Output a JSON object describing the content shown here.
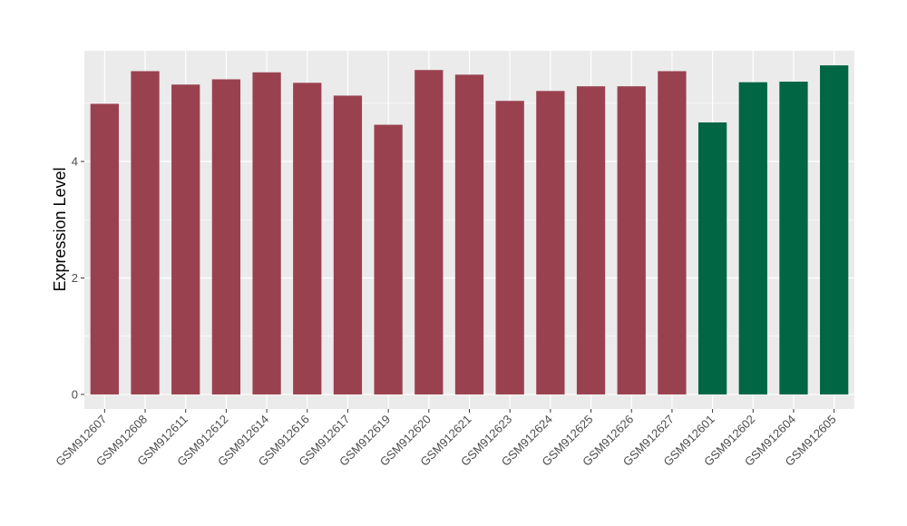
{
  "chart_data": {
    "type": "bar",
    "title": "",
    "xlabel": "",
    "ylabel": "Expression Level",
    "ylim": [
      -0.25,
      5.9
    ],
    "yticks": [
      0,
      2,
      4
    ],
    "grid": true,
    "legend": "none",
    "colors": {
      "group_a": "#9a4150",
      "group_b": "#006644",
      "panel_bg": "#ebebeb",
      "grid": "#ffffff"
    },
    "categories": [
      "GSM912607",
      "GSM912608",
      "GSM912611",
      "GSM912612",
      "GSM912614",
      "GSM912616",
      "GSM912617",
      "GSM912619",
      "GSM912620",
      "GSM912621",
      "GSM912623",
      "GSM912624",
      "GSM912625",
      "GSM912626",
      "GSM912627",
      "GSM912601",
      "GSM912602",
      "GSM912604",
      "GSM912605"
    ],
    "values": [
      4.99,
      5.55,
      5.32,
      5.41,
      5.53,
      5.35,
      5.13,
      4.63,
      5.57,
      5.49,
      5.04,
      5.21,
      5.29,
      5.29,
      5.55,
      4.67,
      5.36,
      5.37,
      5.65
    ],
    "groups": [
      "a",
      "a",
      "a",
      "a",
      "a",
      "a",
      "a",
      "a",
      "a",
      "a",
      "a",
      "a",
      "a",
      "a",
      "a",
      "b",
      "b",
      "b",
      "b"
    ]
  }
}
